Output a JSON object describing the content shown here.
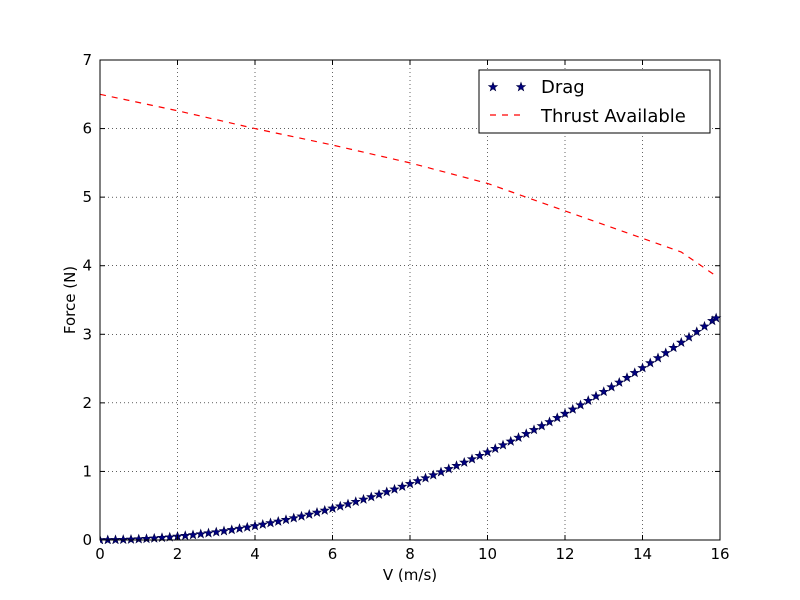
{
  "chart_data": {
    "type": "line",
    "title": "",
    "xlabel": "V (m/s)",
    "ylabel": "Force (N)",
    "xlim": [
      0,
      16
    ],
    "ylim": [
      0,
      7
    ],
    "xticks": [
      "0",
      "2",
      "4",
      "6",
      "8",
      "10",
      "12",
      "14",
      "16"
    ],
    "yticks": [
      "0",
      "1",
      "2",
      "3",
      "4",
      "5",
      "6",
      "7"
    ],
    "grid": true,
    "legend_position": "top-right",
    "series": [
      {
        "name": "Drag",
        "style": "star-markers",
        "color": "#000080",
        "formula_coefficient": 0.0128,
        "x": [
          0,
          0.2,
          0.4,
          0.6,
          0.8,
          1.0,
          1.2,
          1.4,
          1.6,
          1.8,
          2.0,
          2.2,
          2.4,
          2.6,
          2.8,
          3.0,
          3.2,
          3.4,
          3.6,
          3.8,
          4.0,
          4.2,
          4.4,
          4.6,
          4.8,
          5.0,
          5.2,
          5.4,
          5.6,
          5.8,
          6.0,
          6.2,
          6.4,
          6.6,
          6.8,
          7.0,
          7.2,
          7.4,
          7.6,
          7.8,
          8.0,
          8.2,
          8.4,
          8.6,
          8.8,
          9.0,
          9.2,
          9.4,
          9.6,
          9.8,
          10.0,
          10.2,
          10.4,
          10.6,
          10.8,
          11.0,
          11.2,
          11.4,
          11.6,
          11.8,
          12.0,
          12.2,
          12.4,
          12.6,
          12.8,
          13.0,
          13.2,
          13.4,
          13.6,
          13.8,
          14.0,
          14.2,
          14.4,
          14.6,
          14.8,
          15.0,
          15.2,
          15.4,
          15.6,
          15.8,
          15.9
        ],
        "y": [
          0.0,
          0.001,
          0.002,
          0.005,
          0.008,
          0.013,
          0.018,
          0.025,
          0.033,
          0.041,
          0.051,
          0.062,
          0.074,
          0.087,
          0.1,
          0.115,
          0.131,
          0.148,
          0.166,
          0.185,
          0.205,
          0.226,
          0.248,
          0.271,
          0.295,
          0.32,
          0.346,
          0.373,
          0.401,
          0.431,
          0.461,
          0.492,
          0.524,
          0.558,
          0.592,
          0.627,
          0.664,
          0.701,
          0.739,
          0.779,
          0.819,
          0.861,
          0.903,
          0.947,
          0.991,
          1.037,
          1.083,
          1.131,
          1.18,
          1.229,
          1.28,
          1.332,
          1.384,
          1.438,
          1.493,
          1.549,
          1.606,
          1.663,
          1.722,
          1.782,
          1.843,
          1.905,
          1.968,
          2.032,
          2.097,
          2.163,
          2.23,
          2.298,
          2.367,
          2.438,
          2.509,
          2.581,
          2.654,
          2.728,
          2.804,
          2.88,
          2.957,
          3.036,
          3.115,
          3.196,
          3.236
        ]
      },
      {
        "name": "Thrust Available",
        "style": "dashed",
        "color": "#ff0000",
        "x": [
          0,
          2,
          4,
          6,
          8,
          10,
          12,
          14,
          15,
          15.9
        ],
        "y": [
          6.5,
          6.26,
          6.0,
          5.76,
          5.5,
          5.2,
          4.8,
          4.4,
          4.2,
          3.85
        ]
      }
    ]
  }
}
